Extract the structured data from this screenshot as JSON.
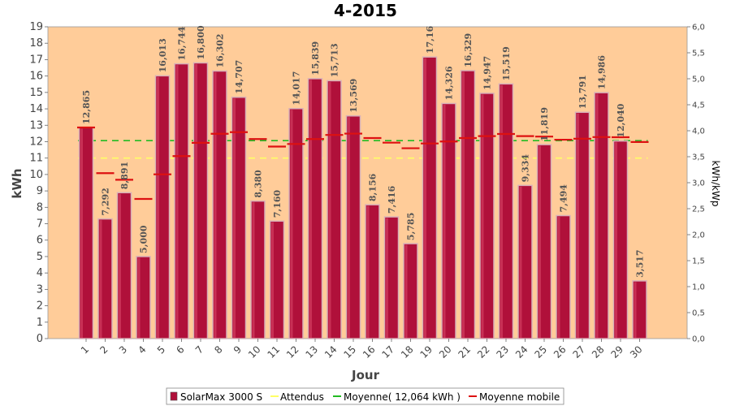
{
  "chart_data": {
    "type": "bar",
    "title": "4-2015",
    "xlabel": "Jour",
    "ylabel": "kWh",
    "y2label": "kWh/kWp",
    "ylim": [
      0,
      19
    ],
    "y2lim": [
      0.0,
      6.0
    ],
    "y_ticks": [
      "0",
      "1",
      "2",
      "3",
      "4",
      "5",
      "6",
      "7",
      "8",
      "9",
      "10",
      "11",
      "12",
      "13",
      "14",
      "15",
      "16",
      "17",
      "18",
      "19"
    ],
    "y2_ticks": [
      "0,0",
      "0,5",
      "1,0",
      "1,5",
      "2,0",
      "2,5",
      "3,0",
      "3,5",
      "4,0",
      "4,5",
      "5,0",
      "5,5",
      "6,0"
    ],
    "categories": [
      "1",
      "2",
      "3",
      "4",
      "5",
      "6",
      "7",
      "8",
      "9",
      "10",
      "11",
      "12",
      "13",
      "14",
      "15",
      "16",
      "17",
      "18",
      "19",
      "20",
      "21",
      "22",
      "23",
      "24",
      "25",
      "26",
      "27",
      "28",
      "29",
      "30"
    ],
    "series": [
      {
        "name": "SolarMax 3000 S",
        "values": [
          12.865,
          7.292,
          8.891,
          5.0,
          16.013,
          16.744,
          16.8,
          16.302,
          14.707,
          8.38,
          7.16,
          14.017,
          15.839,
          15.713,
          13.569,
          8.156,
          7.416,
          5.785,
          17.16,
          14.326,
          16.329,
          14.947,
          15.519,
          9.334,
          11.819,
          7.494,
          13.791,
          14.986,
          12.04,
          3.517
        ],
        "labels": [
          "12,865",
          "7,292",
          "8,891",
          "5,000",
          "16,013",
          "16,744",
          "16,800",
          "16,302",
          "14,707",
          "8,380",
          "7,160",
          "14,017",
          "15,839",
          "15,713",
          "13,569",
          "8,156",
          "7,416",
          "5,785",
          "17,16",
          "14,326",
          "16,329",
          "14,947",
          "15,519",
          "9,334",
          "11,819",
          "7,494",
          "13,791",
          "14,986",
          "12,040",
          "3,517"
        ],
        "color": "#b0103a"
      },
      {
        "name": "Attendus",
        "value": 11.0,
        "color": "#ffff66"
      },
      {
        "name": "Moyenne( 12,064 kWh )",
        "value": 12.064,
        "color": "#22bb22"
      },
      {
        "name": "Moyenne mobile",
        "values": [
          12.865,
          10.08,
          9.68,
          8.51,
          10.01,
          11.12,
          11.93,
          12.48,
          12.58,
          12.16,
          11.7,
          11.86,
          12.16,
          12.41,
          12.49,
          12.22,
          11.94,
          11.6,
          11.89,
          12.01,
          12.22,
          12.34,
          12.47,
          12.34,
          12.31,
          12.12,
          12.18,
          12.28,
          12.27,
          11.98
        ],
        "color": "#dd1111"
      }
    ],
    "legend_position": "bottom",
    "grid": false,
    "background": "#ffcc99"
  }
}
